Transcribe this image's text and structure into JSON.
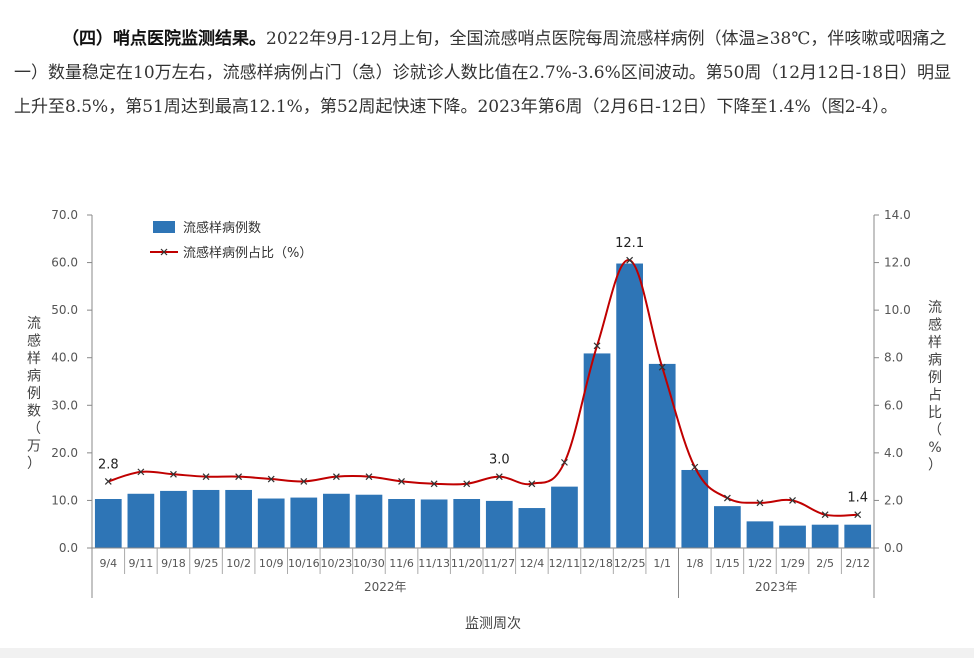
{
  "paragraph": {
    "heading": "（四）哨点医院监测结果。",
    "body": "2022年9月-12月上旬，全国流感哨点医院每周流感样病例（体温≥38℃，伴咳嗽或咽痛之一）数量稳定在10万左右，流感样病例占门（急）诊就诊人数比值在2.7%-3.6%区间波动。第50周（12月12日-18日）明显上升至8.5%，第51周达到最高12.1%，第52周起快速下降。2023年第6周（2月6日-12日）下降至1.4%（图2-4）。"
  },
  "chart_data": {
    "type": "bar+line",
    "categories": [
      "9/4",
      "9/11",
      "9/18",
      "9/25",
      "10/2",
      "10/9",
      "10/16",
      "10/23",
      "10/30",
      "11/6",
      "11/13",
      "11/20",
      "11/27",
      "12/4",
      "12/11",
      "12/18",
      "12/25",
      "1/1",
      "1/8",
      "1/15",
      "1/22",
      "1/29",
      "2/5",
      "2/12"
    ],
    "year_groups": [
      {
        "label": "2022年",
        "from": 0,
        "to": 17
      },
      {
        "label": "2023年",
        "from": 18,
        "to": 23
      }
    ],
    "series": [
      {
        "name": "流感样病例数",
        "kind": "bar",
        "axis": "left",
        "color": "#2e75b6",
        "values": [
          10.3,
          11.4,
          12.0,
          12.2,
          12.2,
          10.4,
          10.6,
          11.4,
          11.2,
          10.3,
          10.2,
          10.3,
          9.9,
          8.4,
          12.9,
          40.9,
          59.8,
          38.7,
          16.4,
          8.8,
          5.6,
          4.7,
          4.9,
          4.9
        ]
      },
      {
        "name": "流感样病例占比（%）",
        "kind": "line",
        "axis": "right",
        "color": "#c00000",
        "values": [
          2.8,
          3.2,
          3.1,
          3.0,
          3.0,
          2.9,
          2.8,
          3.0,
          3.0,
          2.8,
          2.7,
          2.7,
          3.0,
          2.7,
          3.6,
          8.5,
          12.1,
          7.6,
          3.4,
          2.1,
          1.9,
          2.0,
          1.4,
          1.4
        ]
      }
    ],
    "data_labels": [
      {
        "index": 0,
        "text": "2.8"
      },
      {
        "index": 12,
        "text": "3.0"
      },
      {
        "index": 16,
        "text": "12.1"
      },
      {
        "index": 23,
        "text": "1.4"
      }
    ],
    "left_axis": {
      "min": 0,
      "max": 70,
      "ticks": [
        "0.0",
        "10.0",
        "20.0",
        "30.0",
        "40.0",
        "50.0",
        "60.0",
        "70.0"
      ],
      "label": "流感样病例数（万）"
    },
    "right_axis": {
      "min": 0,
      "max": 14,
      "ticks": [
        "0.0",
        "2.0",
        "4.0",
        "6.0",
        "8.0",
        "10.0",
        "12.0",
        "14.0"
      ],
      "label": "流感样病例占比（%）"
    },
    "xlabel": "监测周次",
    "legend_position": "top-left",
    "grid": false
  }
}
